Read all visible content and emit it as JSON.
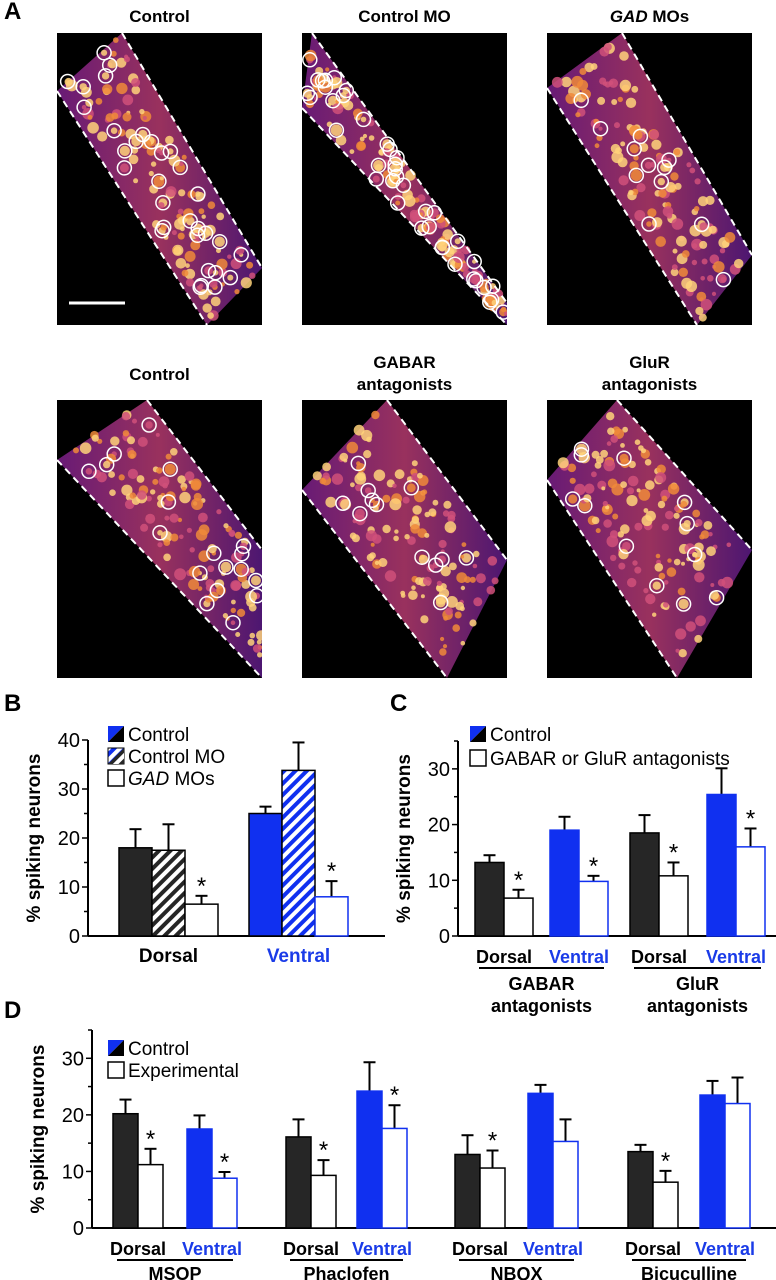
{
  "panel_labels": [
    "A",
    "B",
    "C",
    "D"
  ],
  "images": [
    {
      "title": "Control",
      "title_italic": false
    },
    {
      "title": "Control MO",
      "title_italic": false
    },
    {
      "title": "GAD MOs",
      "title_italic_part": "GAD",
      "title_rest": " MOs"
    },
    {
      "title": "Control"
    },
    {
      "title_line1": "GABAR",
      "title_line2": "antagonists"
    },
    {
      "title_line1": "GluR",
      "title_line2": "antagonists"
    }
  ],
  "colors": {
    "control_dorsal": "#262626",
    "control_ventral": "#1030f0",
    "experimental": "#ffffff",
    "ventral_label": "#1a3be8"
  },
  "chart_data": [
    {
      "id": "B",
      "type": "bar",
      "ylabel": "% spiking neurons",
      "ylim": [
        0,
        40
      ],
      "yticks": [
        0,
        10,
        20,
        30,
        40
      ],
      "categories": [
        "Dorsal",
        "Ventral"
      ],
      "legend": [
        {
          "label": "Control",
          "style": "solid"
        },
        {
          "label": "Control MO",
          "style": "hatched"
        },
        {
          "label_italic": "GAD",
          "label_rest": " MOs",
          "style": "open"
        }
      ],
      "series": [
        {
          "name": "Control",
          "values": [
            18,
            25
          ],
          "errors": [
            21.8,
            26.4
          ],
          "significant": [
            false,
            false
          ]
        },
        {
          "name": "Control MO",
          "values": [
            17.5,
            33.8
          ],
          "errors": [
            22.8,
            39.5
          ],
          "significant": [
            false,
            false
          ]
        },
        {
          "name": "GAD MOs",
          "values": [
            6.5,
            8
          ],
          "errors": [
            8.2,
            11.2
          ],
          "significant": [
            true,
            true
          ]
        }
      ]
    },
    {
      "id": "C",
      "type": "bar",
      "ylabel": "% spiking neurons",
      "ylim": [
        0,
        35
      ],
      "yticks": [
        0,
        10,
        20,
        30
      ],
      "groups": [
        {
          "line1": "GABAR",
          "line2": "antagonists"
        },
        {
          "line1": "GluR",
          "line2": "antagonists"
        }
      ],
      "subcategories": [
        "Dorsal",
        "Ventral"
      ],
      "legend": [
        {
          "label": "Control",
          "style": "solid"
        },
        {
          "label": "GABAR or GluR antagonists",
          "style": "open"
        }
      ],
      "bars": [
        {
          "group": 0,
          "sub": "Dorsal",
          "control": 13.2,
          "control_err": 14.5,
          "exp": 6.8,
          "exp_err": 8.3,
          "sig": true
        },
        {
          "group": 0,
          "sub": "Ventral",
          "control": 19,
          "control_err": 21.4,
          "exp": 9.8,
          "exp_err": 10.8,
          "sig": true
        },
        {
          "group": 1,
          "sub": "Dorsal",
          "control": 18.5,
          "control_err": 21.7,
          "exp": 10.8,
          "exp_err": 13.2,
          "sig": true
        },
        {
          "group": 1,
          "sub": "Ventral",
          "control": 25.4,
          "control_err": 30.1,
          "exp": 16,
          "exp_err": 19.3,
          "sig": true
        }
      ]
    },
    {
      "id": "D",
      "type": "bar",
      "ylabel": "% spiking neurons",
      "ylim": [
        0,
        35
      ],
      "yticks": [
        0,
        10,
        20,
        30
      ],
      "groups": [
        "MSOP",
        "Phaclofen",
        "NBQX",
        "Bicuculline"
      ],
      "subcategories": [
        "Dorsal",
        "Ventral"
      ],
      "legend": [
        {
          "label": "Control",
          "style": "solid"
        },
        {
          "label": "Experimental",
          "style": "open"
        }
      ],
      "bars": [
        {
          "group": 0,
          "sub": "Dorsal",
          "control": 20.2,
          "control_err": 22.7,
          "exp": 11.2,
          "exp_err": 14,
          "sig": true
        },
        {
          "group": 0,
          "sub": "Ventral",
          "control": 17.5,
          "control_err": 19.9,
          "exp": 8.8,
          "exp_err": 9.9,
          "sig": true
        },
        {
          "group": 1,
          "sub": "Dorsal",
          "control": 16.1,
          "control_err": 19.2,
          "exp": 9.3,
          "exp_err": 12,
          "sig": true
        },
        {
          "group": 1,
          "sub": "Ventral",
          "control": 24.2,
          "control_err": 29.3,
          "exp": 17.6,
          "exp_err": 21.7,
          "sig": true
        },
        {
          "group": 2,
          "sub": "Dorsal",
          "control": 13,
          "control_err": 16.4,
          "exp": 10.6,
          "exp_err": 13.7,
          "sig": true
        },
        {
          "group": 2,
          "sub": "Ventral",
          "control": 23.8,
          "control_err": 25.3,
          "exp": 15.3,
          "exp_err": 19.2,
          "sig": false
        },
        {
          "group": 3,
          "sub": "Dorsal",
          "control": 13.5,
          "control_err": 14.7,
          "exp": 8.1,
          "exp_err": 10.1,
          "sig": true
        },
        {
          "group": 3,
          "sub": "Ventral",
          "control": 23.5,
          "control_err": 26,
          "exp": 22,
          "exp_err": 26.6,
          "sig": false
        }
      ]
    }
  ]
}
